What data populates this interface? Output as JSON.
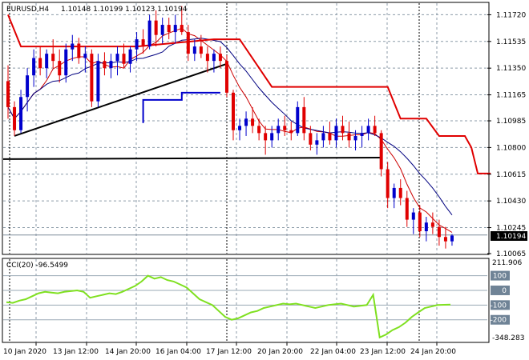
{
  "header": {
    "symbol": "EURUSD,H4",
    "ohlc": "1.10148 1.10199 1.10123 1.10194"
  },
  "cci_header": "CCI(20) -96.5499",
  "price_axis": {
    "ticks": [
      "1.11720",
      "1.11535",
      "1.11350",
      "1.11165",
      "1.10985",
      "1.10800",
      "1.10615",
      "1.10430",
      "1.10245",
      "1.10065"
    ],
    "current": "1.10194"
  },
  "cci_axis": {
    "ticks": [
      "100",
      "0",
      "-100",
      "-200"
    ],
    "max_label": "211.906",
    "min_label": "-348.283"
  },
  "time_axis": {
    "labels": [
      "10 Jan 2020",
      "13 Jan 12:00",
      "14 Jan 20:00",
      "16 Jan 04:00",
      "17 Jan 12:00",
      "20 Jan 20:00",
      "22 Jan 04:00",
      "23 Jan 12:00",
      "24 Jan 20:00"
    ]
  },
  "colors": {
    "bull": "#0000cc",
    "bear": "#e00000",
    "grid": "#8c9ba8",
    "cci_line": "#7fe020",
    "current_box": "#000000"
  },
  "chart_data": {
    "type": "candlestick",
    "price_range": [
      1.10065,
      1.118
    ],
    "cci_range": [
      -348.283,
      211.906
    ],
    "candles": [
      [
        1.1126,
        1.1137,
        1.11,
        1.1108
      ],
      [
        1.1108,
        1.1112,
        1.1088,
        1.1092
      ],
      [
        1.1092,
        1.112,
        1.109,
        1.1115
      ],
      [
        1.1115,
        1.1135,
        1.1105,
        1.113
      ],
      [
        1.113,
        1.1148,
        1.1122,
        1.1142
      ],
      [
        1.1142,
        1.115,
        1.113,
        1.1135
      ],
      [
        1.1135,
        1.1148,
        1.1128,
        1.1145
      ],
      [
        1.1145,
        1.1155,
        1.1135,
        1.114
      ],
      [
        1.114,
        1.1148,
        1.1125,
        1.113
      ],
      [
        1.113,
        1.1152,
        1.1125,
        1.1148
      ],
      [
        1.1148,
        1.1158,
        1.114,
        1.1152
      ],
      [
        1.1152,
        1.1156,
        1.1138,
        1.1142
      ],
      [
        1.1142,
        1.115,
        1.1132,
        1.1145
      ],
      [
        1.1145,
        1.1148,
        1.1108,
        1.1112
      ],
      [
        1.1112,
        1.1145,
        1.1108,
        1.114
      ],
      [
        1.114,
        1.1146,
        1.113,
        1.1135
      ],
      [
        1.1135,
        1.1145,
        1.1128,
        1.114
      ],
      [
        1.114,
        1.115,
        1.113,
        1.1145
      ],
      [
        1.1145,
        1.1152,
        1.1135,
        1.1138
      ],
      [
        1.1138,
        1.115,
        1.1132,
        1.1148
      ],
      [
        1.1148,
        1.116,
        1.114,
        1.1155
      ],
      [
        1.1155,
        1.1162,
        1.1145,
        1.115
      ],
      [
        1.115,
        1.1172,
        1.1148,
        1.1168
      ],
      [
        1.1168,
        1.1175,
        1.115,
        1.1158
      ],
      [
        1.1158,
        1.117,
        1.1152,
        1.1165
      ],
      [
        1.1165,
        1.117,
        1.1155,
        1.116
      ],
      [
        1.116,
        1.1172,
        1.1152,
        1.1165
      ],
      [
        1.1165,
        1.1178,
        1.1158,
        1.116
      ],
      [
        1.116,
        1.1165,
        1.114,
        1.1145
      ],
      [
        1.1145,
        1.1155,
        1.114,
        1.115
      ],
      [
        1.115,
        1.1158,
        1.1142,
        1.1145
      ],
      [
        1.1145,
        1.115,
        1.1132,
        1.114
      ],
      [
        1.114,
        1.1148,
        1.1132,
        1.1145
      ],
      [
        1.1145,
        1.115,
        1.1135,
        1.114
      ],
      [
        1.114,
        1.1144,
        1.1115,
        1.1118
      ],
      [
        1.1118,
        1.112,
        1.1085,
        1.1092
      ],
      [
        1.1092,
        1.11,
        1.1085,
        1.1095
      ],
      [
        1.1095,
        1.1105,
        1.1088,
        1.11
      ],
      [
        1.11,
        1.1108,
        1.109,
        1.1095
      ],
      [
        1.1095,
        1.11,
        1.1085,
        1.109
      ],
      [
        1.109,
        1.1095,
        1.1075,
        1.1085
      ],
      [
        1.1085,
        1.1095,
        1.108,
        1.109
      ],
      [
        1.109,
        1.11,
        1.1085,
        1.1095
      ],
      [
        1.1095,
        1.1102,
        1.1088,
        1.1092
      ],
      [
        1.1092,
        1.1098,
        1.1085,
        1.109
      ],
      [
        1.109,
        1.1112,
        1.1088,
        1.1108
      ],
      [
        1.1108,
        1.1115,
        1.1085,
        1.109
      ],
      [
        1.109,
        1.1095,
        1.1078,
        1.1082
      ],
      [
        1.1082,
        1.109,
        1.1075,
        1.1085
      ],
      [
        1.1085,
        1.1095,
        1.108,
        1.109
      ],
      [
        1.109,
        1.1098,
        1.1082,
        1.1085
      ],
      [
        1.1085,
        1.11,
        1.108,
        1.1095
      ],
      [
        1.1095,
        1.1102,
        1.1085,
        1.109
      ],
      [
        1.109,
        1.1098,
        1.108,
        1.1085
      ],
      [
        1.1085,
        1.1092,
        1.1078,
        1.1088
      ],
      [
        1.1088,
        1.1095,
        1.108,
        1.109
      ],
      [
        1.109,
        1.11,
        1.1085,
        1.1095
      ],
      [
        1.1095,
        1.1102,
        1.1088,
        1.109
      ],
      [
        1.109,
        1.1092,
        1.106,
        1.1065
      ],
      [
        1.1065,
        1.107,
        1.1038,
        1.1045
      ],
      [
        1.1045,
        1.1055,
        1.1038,
        1.1052
      ],
      [
        1.1052,
        1.1058,
        1.104,
        1.1045
      ],
      [
        1.1045,
        1.105,
        1.1025,
        1.103
      ],
      [
        1.103,
        1.1038,
        1.102,
        1.1035
      ],
      [
        1.1035,
        1.104,
        1.1018,
        1.1022
      ],
      [
        1.1022,
        1.1032,
        1.1015,
        1.1028
      ],
      [
        1.1028,
        1.1035,
        1.102,
        1.1025
      ],
      [
        1.1025,
        1.103,
        1.1012,
        1.1018
      ],
      [
        1.1018,
        1.1025,
        1.101,
        1.1015
      ],
      [
        1.1015,
        1.102,
        1.1012,
        1.1019
      ]
    ],
    "cci": [
      -80,
      -85,
      -70,
      -60,
      -40,
      -20,
      -10,
      -15,
      -20,
      -10,
      -5,
      0,
      -10,
      -50,
      -40,
      -30,
      -20,
      -25,
      -10,
      10,
      30,
      60,
      100,
      80,
      90,
      70,
      60,
      40,
      20,
      -20,
      -60,
      -80,
      -100,
      -140,
      -180,
      -200,
      -190,
      -170,
      -150,
      -140,
      -120,
      -110,
      -100,
      -90,
      -95,
      -90,
      -100,
      -110,
      -120,
      -110,
      -100,
      -95,
      -90,
      -100,
      -110,
      -105,
      -100,
      -30,
      -320,
      -300,
      -270,
      -250,
      -220,
      -180,
      -150,
      -120,
      -110,
      -100,
      -98,
      -96.5
    ]
  }
}
